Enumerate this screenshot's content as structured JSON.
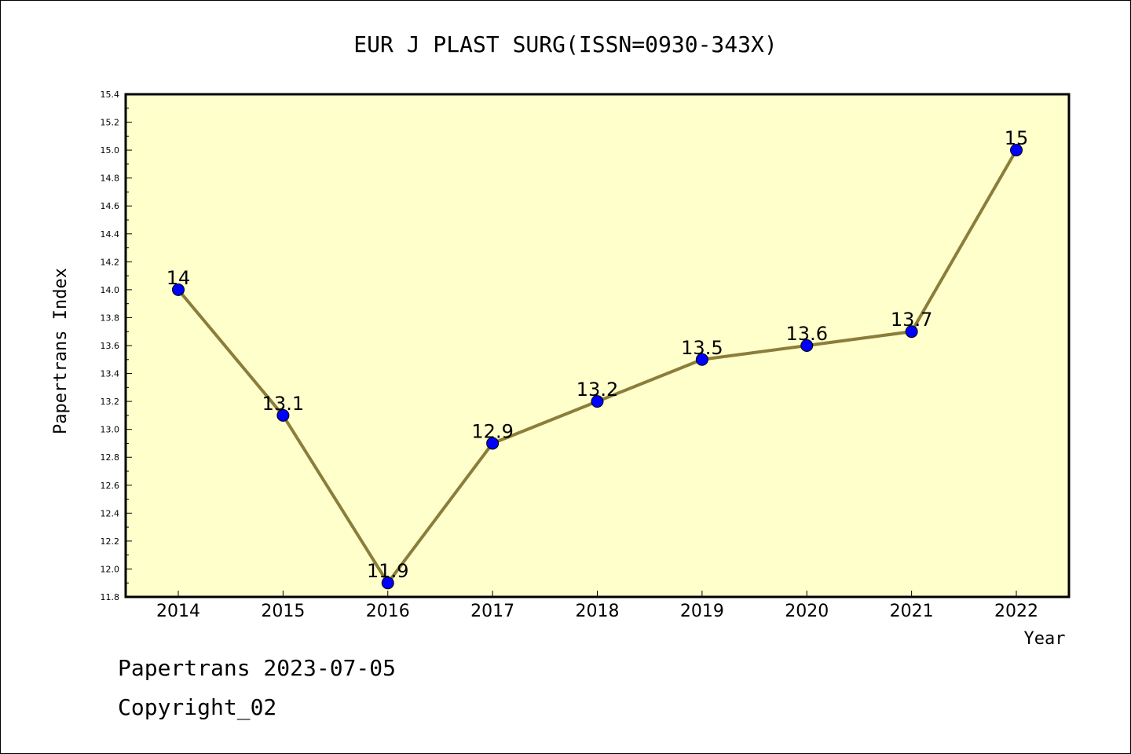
{
  "chart_data": {
    "type": "line",
    "title": "EUR J PLAST SURG(ISSN=0930-343X)",
    "xlabel": "Year",
    "ylabel": "Papertrans Index",
    "categories": [
      "2014",
      "2015",
      "2016",
      "2017",
      "2018",
      "2019",
      "2020",
      "2021",
      "2022"
    ],
    "series": [
      {
        "values": [
          14,
          13.1,
          11.9,
          12.9,
          13.2,
          13.5,
          13.6,
          13.7,
          15
        ],
        "labels": [
          "14",
          "13.1",
          "11.9",
          "12.9",
          "13.2",
          "13.5",
          "13.6",
          "13.7",
          "15"
        ]
      }
    ],
    "ylim": [
      11.8,
      15.4
    ],
    "yticks": [
      "11.8",
      "12.0",
      "12.2",
      "12.4",
      "12.6",
      "12.8",
      "13.0",
      "13.2",
      "13.4",
      "13.6",
      "13.8",
      "14.0",
      "14.2",
      "14.4",
      "14.6",
      "14.8",
      "15.0",
      "15.2",
      "15.4"
    ],
    "grid": false,
    "legend": "none",
    "colors": {
      "plot_background": "#ffffcc",
      "line": "#8b7d3a",
      "marker": "#0000ff"
    }
  },
  "footer": {
    "line1": "Papertrans 2023-07-05",
    "line2": "Copyright_02"
  }
}
